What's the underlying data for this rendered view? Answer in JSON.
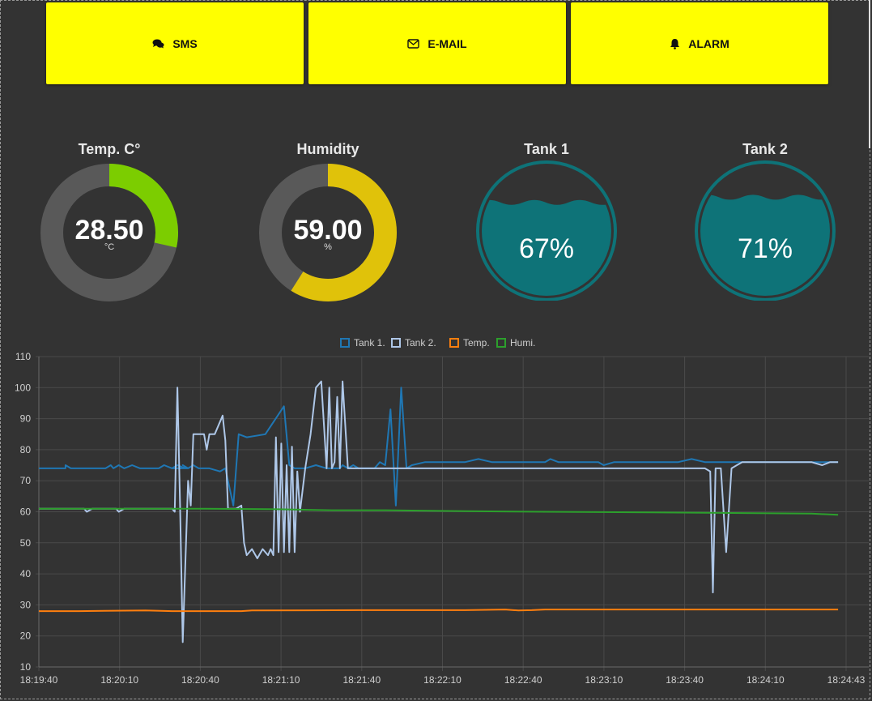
{
  "buttons": [
    {
      "label": "SMS",
      "icon": "comments-icon"
    },
    {
      "label": "E-MAIL",
      "icon": "envelope-icon"
    },
    {
      "label": "ALARM",
      "icon": "bell-icon"
    }
  ],
  "gauges": {
    "temp": {
      "title": "Temp. C°",
      "value": "28.50",
      "unit": "°C",
      "fraction": 0.285,
      "color": "#7ccd00",
      "track": "#595959"
    },
    "humidity": {
      "title": "Humidity",
      "value": "59.00",
      "unit": "%",
      "fraction": 0.59,
      "color": "#e0c20a",
      "track": "#595959"
    }
  },
  "tanks": {
    "tank1": {
      "title": "Tank 1",
      "percent": "67%",
      "level": 0.67,
      "color": "#0e7378"
    },
    "tank2": {
      "title": "Tank 2",
      "percent": "71%",
      "level": 0.71,
      "color": "#0e7378"
    }
  },
  "chart_data": {
    "type": "line",
    "legend_position": "top-center",
    "grid": true,
    "ylim": [
      10,
      110
    ],
    "y_ticks": [
      10,
      20,
      30,
      40,
      50,
      60,
      70,
      80,
      90,
      100,
      110
    ],
    "x_ticks": [
      "18:19:40",
      "18:20:10",
      "18:20:40",
      "18:21:10",
      "18:21:40",
      "18:22:10",
      "18:22:40",
      "18:23:10",
      "18:23:40",
      "18:24:10",
      "18:24:43"
    ],
    "x_range_seconds": [
      0,
      303
    ],
    "series": [
      {
        "name": "Tank 1.",
        "color": "#1f77b4",
        "points": [
          [
            0,
            74
          ],
          [
            10,
            74
          ],
          [
            10,
            75
          ],
          [
            12,
            74
          ],
          [
            25,
            74
          ],
          [
            27,
            75
          ],
          [
            28,
            74
          ],
          [
            30,
            75
          ],
          [
            32,
            74
          ],
          [
            35,
            75
          ],
          [
            38,
            74
          ],
          [
            45,
            74
          ],
          [
            47,
            75
          ],
          [
            50,
            74
          ],
          [
            52,
            75
          ],
          [
            55,
            74
          ],
          [
            50,
            74
          ],
          [
            56,
            74
          ],
          [
            54,
            75
          ],
          [
            56,
            74
          ],
          [
            58,
            75
          ],
          [
            60,
            74
          ],
          [
            64,
            74
          ],
          [
            68,
            73
          ],
          [
            70,
            74
          ],
          [
            73,
            62
          ],
          [
            75,
            85
          ],
          [
            78,
            84
          ],
          [
            85,
            85
          ],
          [
            92,
            94
          ],
          [
            94,
            75
          ],
          [
            96,
            74
          ],
          [
            100,
            74
          ],
          [
            104,
            75
          ],
          [
            108,
            74
          ],
          [
            113,
            74
          ],
          [
            114,
            75
          ],
          [
            116,
            74
          ],
          [
            118,
            75
          ],
          [
            120,
            74
          ],
          [
            126,
            74
          ],
          [
            128,
            76
          ],
          [
            130,
            75
          ],
          [
            132,
            93
          ],
          [
            134,
            62
          ],
          [
            136,
            100
          ],
          [
            138,
            74
          ],
          [
            140,
            75
          ],
          [
            145,
            76
          ],
          [
            155,
            76
          ],
          [
            160,
            76
          ],
          [
            165,
            77
          ],
          [
            170,
            76
          ],
          [
            180,
            76
          ],
          [
            190,
            76
          ],
          [
            192,
            77
          ],
          [
            195,
            76
          ],
          [
            210,
            76
          ],
          [
            212,
            75
          ],
          [
            216,
            76
          ],
          [
            230,
            76
          ],
          [
            235,
            76
          ],
          [
            240,
            76
          ],
          [
            245,
            77
          ],
          [
            250,
            76
          ],
          [
            260,
            76
          ],
          [
            270,
            76
          ],
          [
            275,
            76
          ],
          [
            298,
            76
          ],
          [
            300,
            76
          ]
        ]
      },
      {
        "name": "Tank 2.",
        "color": "#aec7e8",
        "points": [
          [
            0,
            61
          ],
          [
            17,
            61
          ],
          [
            18,
            60
          ],
          [
            20,
            61
          ],
          [
            29,
            61
          ],
          [
            30,
            60
          ],
          [
            32,
            61
          ],
          [
            50,
            61
          ],
          [
            51,
            60
          ],
          [
            52,
            100
          ],
          [
            53,
            62
          ],
          [
            54,
            18
          ],
          [
            56,
            70
          ],
          [
            57,
            62
          ],
          [
            58,
            85
          ],
          [
            60,
            85
          ],
          [
            62,
            85
          ],
          [
            63,
            80
          ],
          [
            64,
            85
          ],
          [
            66,
            85
          ],
          [
            69,
            91
          ],
          [
            70,
            83
          ],
          [
            71,
            61
          ],
          [
            74,
            61
          ],
          [
            76,
            62
          ],
          [
            77,
            50
          ],
          [
            78,
            46
          ],
          [
            80,
            48
          ],
          [
            82,
            45
          ],
          [
            84,
            48
          ],
          [
            86,
            46
          ],
          [
            87,
            48
          ],
          [
            88,
            46
          ],
          [
            89,
            84
          ],
          [
            90,
            47
          ],
          [
            91,
            82
          ],
          [
            92,
            47
          ],
          [
            93,
            75
          ],
          [
            94,
            47
          ],
          [
            95,
            81
          ],
          [
            96,
            47
          ],
          [
            97,
            73
          ],
          [
            98,
            60
          ],
          [
            100,
            74
          ],
          [
            102,
            85
          ],
          [
            104,
            100
          ],
          [
            106,
            102
          ],
          [
            108,
            74
          ],
          [
            109,
            100
          ],
          [
            110,
            74
          ],
          [
            111,
            76
          ],
          [
            112,
            97
          ],
          [
            113,
            74
          ],
          [
            114,
            102
          ],
          [
            116,
            74
          ],
          [
            118,
            74
          ],
          [
            120,
            74
          ],
          [
            125,
            74
          ],
          [
            130,
            74
          ],
          [
            135,
            74
          ],
          [
            140,
            74
          ],
          [
            150,
            74
          ],
          [
            165,
            74
          ],
          [
            190,
            74
          ],
          [
            210,
            74
          ],
          [
            215,
            74
          ],
          [
            222,
            74
          ],
          [
            230,
            74
          ],
          [
            240,
            74
          ],
          [
            247,
            74
          ],
          [
            250,
            74
          ],
          [
            252,
            73
          ],
          [
            253,
            34
          ],
          [
            254,
            74
          ],
          [
            256,
            74
          ],
          [
            258,
            47
          ],
          [
            260,
            74
          ],
          [
            262,
            75
          ],
          [
            264,
            76
          ],
          [
            270,
            76
          ],
          [
            280,
            76
          ],
          [
            290,
            76
          ],
          [
            294,
            75
          ],
          [
            297,
            76
          ],
          [
            300,
            76
          ]
        ]
      },
      {
        "name": "Temp.",
        "color": "#ff7f0e",
        "points": [
          [
            0,
            28
          ],
          [
            15,
            28
          ],
          [
            40,
            28.2
          ],
          [
            50,
            28
          ],
          [
            60,
            28
          ],
          [
            76,
            28
          ],
          [
            80,
            28.2
          ],
          [
            120,
            28.3
          ],
          [
            160,
            28.3
          ],
          [
            175,
            28.5
          ],
          [
            180,
            28.2
          ],
          [
            185,
            28.3
          ],
          [
            190,
            28.5
          ],
          [
            250,
            28.5
          ],
          [
            295,
            28.5
          ],
          [
            300,
            28.5
          ]
        ]
      },
      {
        "name": "Humi.",
        "color": "#2ca02c",
        "points": [
          [
            0,
            61
          ],
          [
            30,
            61
          ],
          [
            60,
            61
          ],
          [
            90,
            60.8
          ],
          [
            110,
            60.5
          ],
          [
            130,
            60.5
          ],
          [
            160,
            60.2
          ],
          [
            190,
            60
          ],
          [
            230,
            59.8
          ],
          [
            260,
            59.6
          ],
          [
            290,
            59.4
          ],
          [
            300,
            59
          ]
        ]
      }
    ]
  }
}
